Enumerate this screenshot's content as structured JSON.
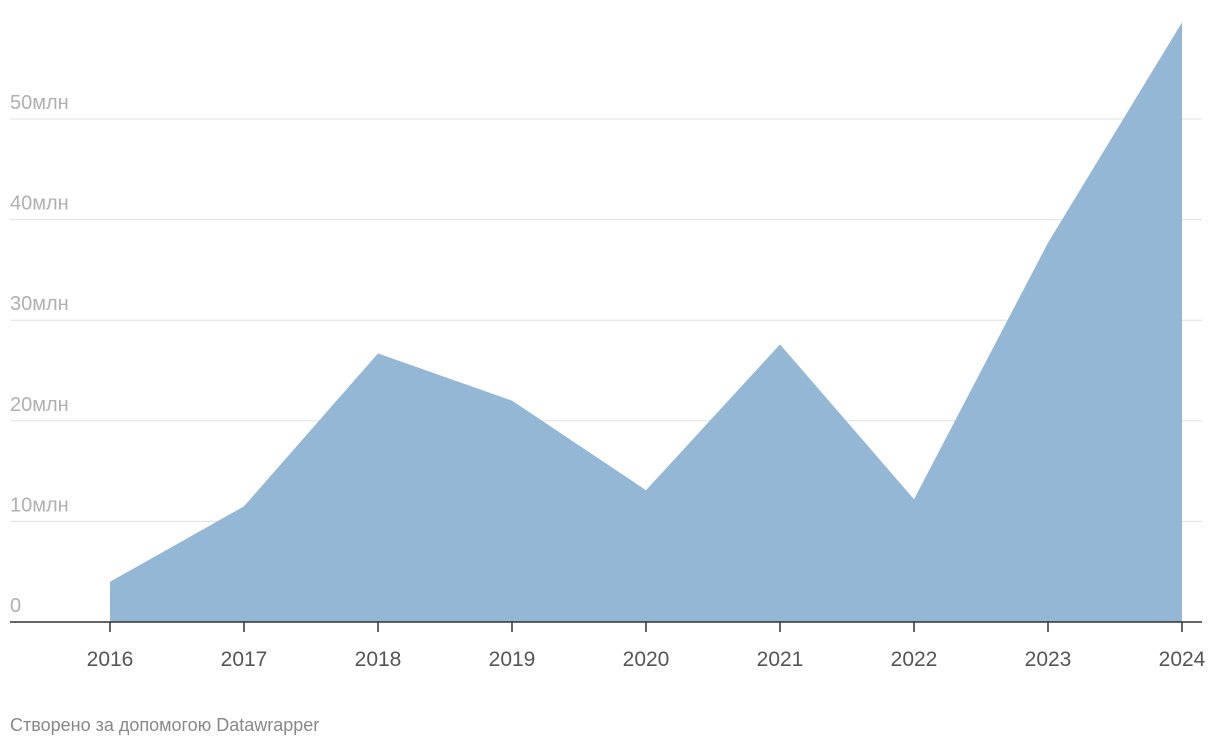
{
  "chart_data": {
    "type": "area",
    "categories": [
      "2016",
      "2017",
      "2018",
      "2019",
      "2020",
      "2021",
      "2022",
      "2023",
      "2024"
    ],
    "series": [
      {
        "color": "#93b7d5",
        "values": [
          4.0,
          11.5,
          26.7,
          22.0,
          13.1,
          27.6,
          12.2,
          37.7,
          59.6
        ]
      }
    ],
    "ylim": [
      0,
      60
    ],
    "yticks": [
      0,
      {
        "value": 10,
        "label": "10млн"
      },
      {
        "value": 20,
        "label": "20млн"
      },
      {
        "value": 30,
        "label": "30млн"
      },
      {
        "value": 40,
        "label": "40млн"
      },
      {
        "value": 50,
        "label": "50млн"
      }
    ],
    "grid": true
  },
  "footer": "Створено за допомогою Datawrapper"
}
